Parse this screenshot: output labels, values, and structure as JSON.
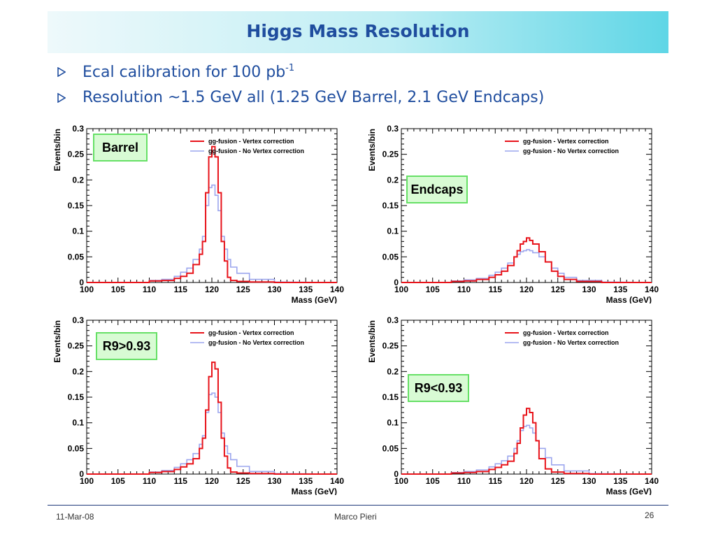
{
  "slide": {
    "title": "Higgs Mass Resolution",
    "bullets": [
      {
        "text": "Ecal calibration for 100 pb",
        "sup": "-1"
      },
      {
        "text": "Resolution ~1.5 GeV all (1.25 GeV Barrel, 2.1 GeV Endcaps)",
        "sup": ""
      }
    ],
    "footer": {
      "date": "11-Mar-08",
      "author": "Marco Pieri",
      "page": "26"
    },
    "colors": {
      "title": "#1f4d9e",
      "series_vertex": "#e8131a",
      "series_novertex": "#9ca6ee",
      "tag_border": "#66e066",
      "tag_fill": "#d8fbd4"
    }
  },
  "chart_data": [
    {
      "type": "line",
      "title": "",
      "tag": "Barrel",
      "xlabel": "Mass (GeV)",
      "ylabel": "Events/bin",
      "xlim": [
        100,
        140
      ],
      "ylim": [
        0,
        0.3
      ],
      "xticks": [
        "100",
        "105",
        "110",
        "115",
        "120",
        "125",
        "130",
        "135",
        "140"
      ],
      "yticks": [
        "0",
        "0.05",
        "0.1",
        "0.15",
        "0.2",
        "0.25",
        "0.3"
      ],
      "legend_position": "top-right",
      "series": [
        {
          "name": "gg-fusion - Vertex correction",
          "x": [
            110,
            112,
            114,
            115,
            116,
            117,
            118,
            118.5,
            119,
            119.5,
            120,
            120.5,
            121,
            121.5,
            122,
            122.5,
            123,
            124,
            126,
            130
          ],
          "y": [
            0.003,
            0.004,
            0.008,
            0.012,
            0.018,
            0.035,
            0.055,
            0.08,
            0.175,
            0.245,
            0.265,
            0.245,
            0.175,
            0.08,
            0.042,
            0.01,
            0.004,
            0.002,
            0.001,
            0.0
          ]
        },
        {
          "name": "gg-fusion - No Vertex correction",
          "x": [
            110,
            112,
            114,
            115,
            116,
            117,
            118,
            118.5,
            119,
            119.5,
            120,
            120.5,
            121,
            121.5,
            122,
            122.5,
            123,
            124,
            126,
            130
          ],
          "y": [
            0.004,
            0.006,
            0.012,
            0.02,
            0.028,
            0.045,
            0.065,
            0.09,
            0.15,
            0.185,
            0.19,
            0.17,
            0.14,
            0.09,
            0.065,
            0.045,
            0.03,
            0.018,
            0.006,
            0.001
          ]
        }
      ]
    },
    {
      "type": "line",
      "title": "",
      "tag": "Endcaps",
      "xlabel": "Mass (GeV)",
      "ylabel": "Events/bin",
      "xlim": [
        100,
        140
      ],
      "ylim": [
        0,
        0.3
      ],
      "xticks": [
        "100",
        "105",
        "110",
        "115",
        "120",
        "125",
        "130",
        "135",
        "140"
      ],
      "yticks": [
        "0",
        "0.05",
        "0.1",
        "0.15",
        "0.2",
        "0.25",
        "0.3"
      ],
      "legend_position": "top-right",
      "series": [
        {
          "name": "gg-fusion - Vertex correction",
          "x": [
            108,
            110,
            112,
            114,
            115,
            116,
            117,
            118,
            118.5,
            119,
            119.5,
            120,
            120.5,
            121,
            122,
            123,
            124,
            125,
            126,
            128,
            132
          ],
          "y": [
            0.002,
            0.003,
            0.006,
            0.01,
            0.015,
            0.022,
            0.033,
            0.05,
            0.062,
            0.075,
            0.08,
            0.087,
            0.082,
            0.075,
            0.06,
            0.04,
            0.022,
            0.012,
            0.006,
            0.002,
            0.0
          ]
        },
        {
          "name": "gg-fusion - No Vertex correction",
          "x": [
            108,
            110,
            112,
            114,
            115,
            116,
            117,
            118,
            118.5,
            119,
            119.5,
            120,
            120.5,
            121,
            122,
            123,
            124,
            125,
            126,
            128,
            132
          ],
          "y": [
            0.003,
            0.005,
            0.008,
            0.014,
            0.02,
            0.028,
            0.038,
            0.05,
            0.055,
            0.06,
            0.062,
            0.064,
            0.062,
            0.058,
            0.05,
            0.04,
            0.028,
            0.018,
            0.01,
            0.004,
            0.001
          ]
        }
      ]
    },
    {
      "type": "line",
      "title": "",
      "tag": "R9>0.93",
      "xlabel": "Mass (GeV)",
      "ylabel": "Events/bin",
      "xlim": [
        100,
        140
      ],
      "ylim": [
        0,
        0.3
      ],
      "xticks": [
        "100",
        "105",
        "110",
        "115",
        "120",
        "125",
        "130",
        "135",
        "140"
      ],
      "yticks": [
        "0",
        "0.05",
        "0.1",
        "0.15",
        "0.2",
        "0.25",
        "0.3"
      ],
      "legend_position": "top-right",
      "series": [
        {
          "name": "gg-fusion - Vertex correction",
          "x": [
            110,
            112,
            114,
            115,
            116,
            117,
            118,
            118.5,
            119,
            119.5,
            120,
            120.5,
            121,
            121.5,
            122,
            122.5,
            123,
            124,
            126,
            130
          ],
          "y": [
            0.003,
            0.005,
            0.009,
            0.014,
            0.02,
            0.03,
            0.05,
            0.07,
            0.125,
            0.19,
            0.218,
            0.205,
            0.14,
            0.07,
            0.035,
            0.012,
            0.004,
            0.002,
            0.001,
            0.0
          ]
        },
        {
          "name": "gg-fusion - No Vertex correction",
          "x": [
            110,
            112,
            114,
            115,
            116,
            117,
            118,
            118.5,
            119,
            119.5,
            120,
            120.5,
            121,
            121.5,
            122,
            122.5,
            123,
            124,
            126,
            130
          ],
          "y": [
            0.004,
            0.007,
            0.013,
            0.02,
            0.028,
            0.04,
            0.058,
            0.075,
            0.12,
            0.155,
            0.158,
            0.15,
            0.12,
            0.08,
            0.055,
            0.04,
            0.028,
            0.015,
            0.005,
            0.001
          ]
        }
      ]
    },
    {
      "type": "line",
      "title": "",
      "tag": "R9<0.93",
      "xlabel": "Mass (GeV)",
      "ylabel": "Events/bin",
      "xlim": [
        100,
        140
      ],
      "ylim": [
        0,
        0.3
      ],
      "xticks": [
        "100",
        "105",
        "110",
        "115",
        "120",
        "125",
        "130",
        "135",
        "140"
      ],
      "yticks": [
        "0",
        "0.05",
        "0.1",
        "0.15",
        "0.2",
        "0.25",
        "0.3"
      ],
      "legend_position": "top-right",
      "series": [
        {
          "name": "gg-fusion - Vertex correction",
          "x": [
            108,
            110,
            112,
            114,
            115,
            116,
            117,
            118,
            118.5,
            119,
            119.5,
            120,
            120.5,
            121,
            121.5,
            122,
            123,
            124,
            126,
            130
          ],
          "y": [
            0.002,
            0.003,
            0.005,
            0.009,
            0.013,
            0.018,
            0.025,
            0.04,
            0.06,
            0.09,
            0.115,
            0.128,
            0.12,
            0.1,
            0.065,
            0.03,
            0.01,
            0.004,
            0.001,
            0.0
          ]
        },
        {
          "name": "gg-fusion - No Vertex correction",
          "x": [
            108,
            110,
            112,
            114,
            115,
            116,
            117,
            118,
            118.5,
            119,
            119.5,
            120,
            120.5,
            121,
            121.5,
            122,
            123,
            124,
            126,
            130
          ],
          "y": [
            0.003,
            0.005,
            0.008,
            0.014,
            0.02,
            0.026,
            0.035,
            0.05,
            0.065,
            0.085,
            0.093,
            0.095,
            0.09,
            0.08,
            0.065,
            0.05,
            0.032,
            0.018,
            0.006,
            0.001
          ]
        }
      ]
    }
  ]
}
